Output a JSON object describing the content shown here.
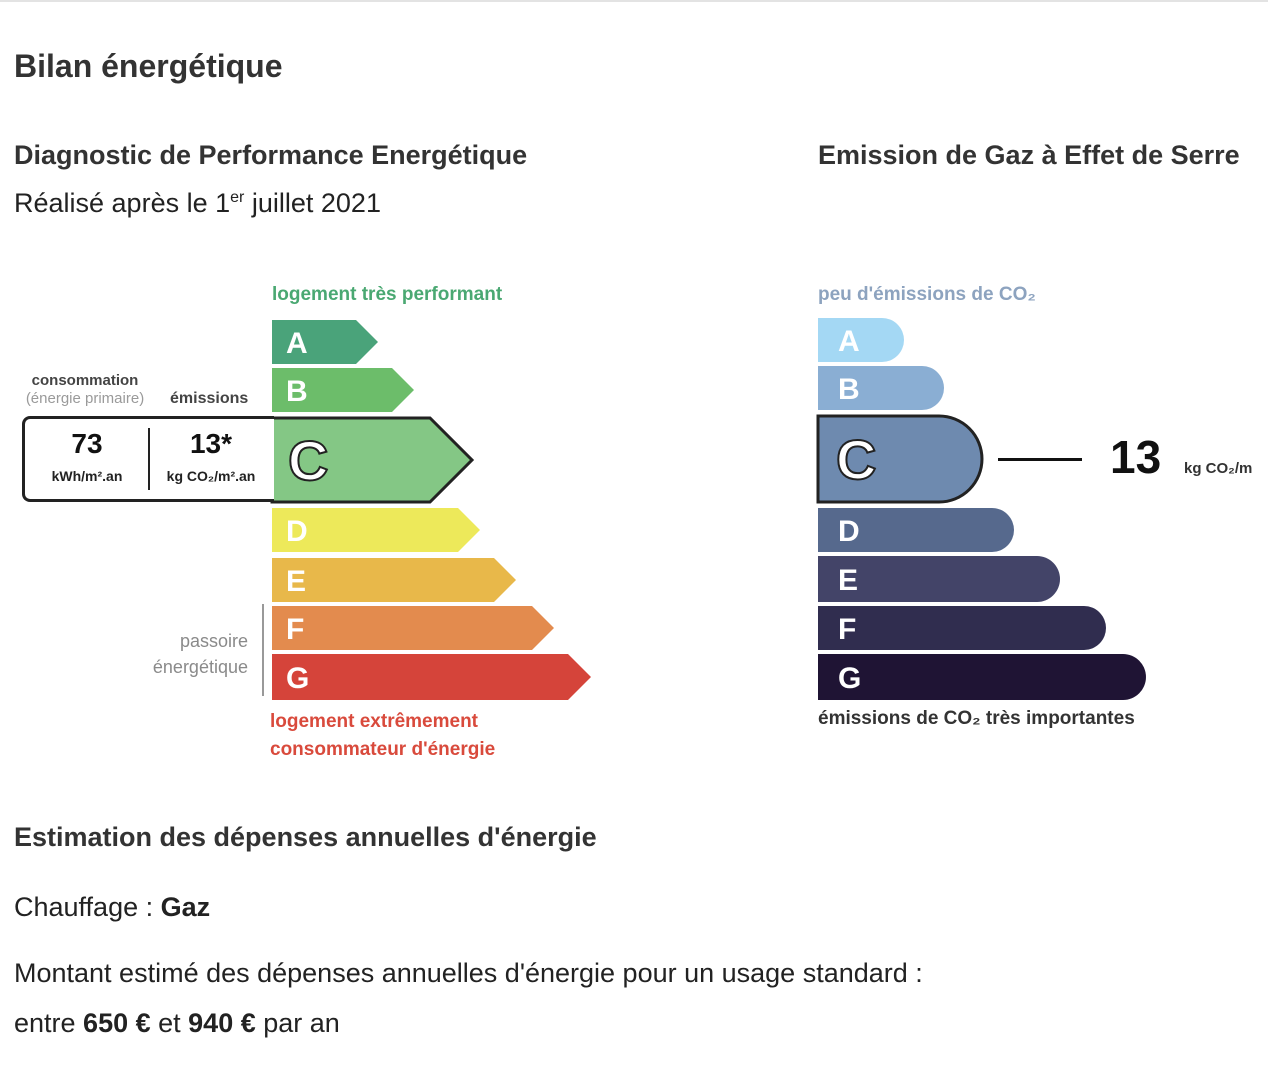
{
  "section_title": "Bilan énergétique",
  "dpe": {
    "title": "Diagnostic de Performance Energétique",
    "subtitle_prefix": "Réalisé après le 1",
    "subtitle_sup": "er",
    "subtitle_suffix": " juillet 2021",
    "top_label": "logement très performant",
    "bottom_label_1": "logement extrêmement",
    "bottom_label_2": "consommateur d'énergie",
    "passoire_1": "passoire",
    "passoire_2": "énergétique",
    "conso_label": "consommation",
    "conso_sub": "(énergie primaire)",
    "emissions_label": "émissions",
    "consumption_value": "73",
    "consumption_unit": "kWh/m².an",
    "emissions_value": "13*",
    "emissions_unit": "kg CO₂/m².an",
    "current_class": "C",
    "classes": [
      {
        "letter": "A",
        "color": "#4aa37a"
      },
      {
        "letter": "B",
        "color": "#6cbd6a"
      },
      {
        "letter": "C",
        "color": "#84c785"
      },
      {
        "letter": "D",
        "color": "#ede95a"
      },
      {
        "letter": "E",
        "color": "#e8b84a"
      },
      {
        "letter": "F",
        "color": "#e38b4e"
      },
      {
        "letter": "G",
        "color": "#d5443a"
      }
    ]
  },
  "ges": {
    "title": "Emission de Gaz à Effet de Serre",
    "top_label": "peu d'émissions de CO₂",
    "bottom_label": "émissions de CO₂ très importantes",
    "value": "13",
    "unit": "kg CO₂/m",
    "current_class": "C",
    "classes": [
      {
        "letter": "A",
        "color": "#a4d8f4"
      },
      {
        "letter": "B",
        "color": "#8aaed3"
      },
      {
        "letter": "C",
        "color": "#6e8aaf"
      },
      {
        "letter": "D",
        "color": "#56698d"
      },
      {
        "letter": "E",
        "color": "#434468"
      },
      {
        "letter": "F",
        "color": "#302d4f"
      },
      {
        "letter": "G",
        "color": "#1f1434"
      }
    ]
  },
  "estimation": {
    "title": "Estimation des dépenses annuelles d'énergie",
    "chauffage_label": "Chauffage : ",
    "chauffage_value": "Gaz",
    "montant_text": "Montant estimé des dépenses annuelles d'énergie pour un usage standard :",
    "range_prefix": "entre ",
    "range_min": "650 €",
    "range_mid": " et ",
    "range_max": "940 €",
    "range_suffix": " par an"
  }
}
